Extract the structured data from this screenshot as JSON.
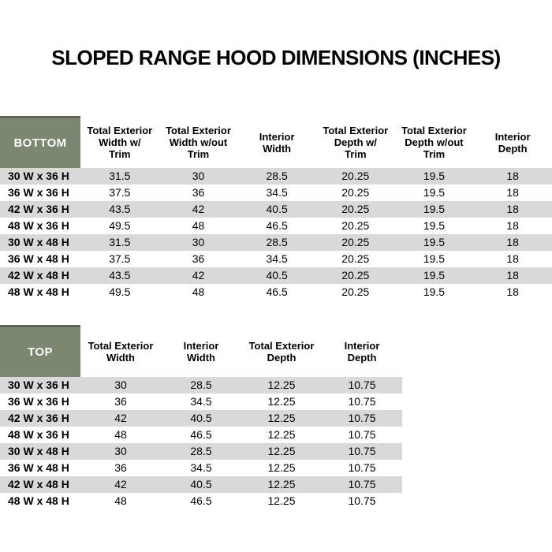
{
  "title": "SLOPED RANGE HOOD DIMENSIONS (INCHES)",
  "colors": {
    "header_green": "#7b8770",
    "header_green_dark": "#5c6652",
    "row_alt_gray": "#d9d9d9",
    "text_color": "#000000",
    "corner_text": "#ffffff"
  },
  "bottom_table": {
    "corner_label": "BOTTOM",
    "columns": [
      "Total Exterior\nWidth w/\nTrim",
      "Total Exterior\nWidth w/out\nTrim",
      "Interior\nWidth",
      "Total Exterior\nDepth w/\nTrim",
      "Total Exterior\nDepth w/out\nTrim",
      "Interior\nDepth"
    ],
    "rows": [
      {
        "label": "30 W x 36 H",
        "values": [
          "31.5",
          "30",
          "28.5",
          "20.25",
          "19.5",
          "18"
        ]
      },
      {
        "label": "36 W x 36 H",
        "values": [
          "37.5",
          "36",
          "34.5",
          "20.25",
          "19.5",
          "18"
        ]
      },
      {
        "label": "42 W x 36 H",
        "values": [
          "43.5",
          "42",
          "40.5",
          "20.25",
          "19.5",
          "18"
        ]
      },
      {
        "label": "48 W x 36 H",
        "values": [
          "49.5",
          "48",
          "46.5",
          "20.25",
          "19.5",
          "18"
        ]
      },
      {
        "label": "30 W x 48 H",
        "values": [
          "31.5",
          "30",
          "28.5",
          "20.25",
          "19.5",
          "18"
        ]
      },
      {
        "label": "36 W x 48 H",
        "values": [
          "37.5",
          "36",
          "34.5",
          "20.25",
          "19.5",
          "18"
        ]
      },
      {
        "label": "42 W x 48 H",
        "values": [
          "43.5",
          "42",
          "40.5",
          "20.25",
          "19.5",
          "18"
        ]
      },
      {
        "label": "48 W x 48 H",
        "values": [
          "49.5",
          "48",
          "46.5",
          "20.25",
          "19.5",
          "18"
        ]
      }
    ]
  },
  "top_table": {
    "corner_label": "TOP",
    "columns": [
      "Total Exterior\nWidth",
      "Interior\nWidth",
      "Total Exterior\nDepth",
      "Interior\nDepth"
    ],
    "rows": [
      {
        "label": "30 W x 36 H",
        "values": [
          "30",
          "28.5",
          "12.25",
          "10.75"
        ]
      },
      {
        "label": "36 W x 36 H",
        "values": [
          "36",
          "34.5",
          "12.25",
          "10.75"
        ]
      },
      {
        "label": "42 W x 36 H",
        "values": [
          "42",
          "40.5",
          "12.25",
          "10.75"
        ]
      },
      {
        "label": "48 W x 36 H",
        "values": [
          "48",
          "46.5",
          "12.25",
          "10.75"
        ]
      },
      {
        "label": "30 W x 48 H",
        "values": [
          "30",
          "28.5",
          "12.25",
          "10.75"
        ]
      },
      {
        "label": "36 W x 48 H",
        "values": [
          "36",
          "34.5",
          "12.25",
          "10.75"
        ]
      },
      {
        "label": "42 W x 48 H",
        "values": [
          "42",
          "40.5",
          "12.25",
          "10.75"
        ]
      },
      {
        "label": "48 W x 48 H",
        "values": [
          "48",
          "46.5",
          "12.25",
          "10.75"
        ]
      }
    ]
  }
}
